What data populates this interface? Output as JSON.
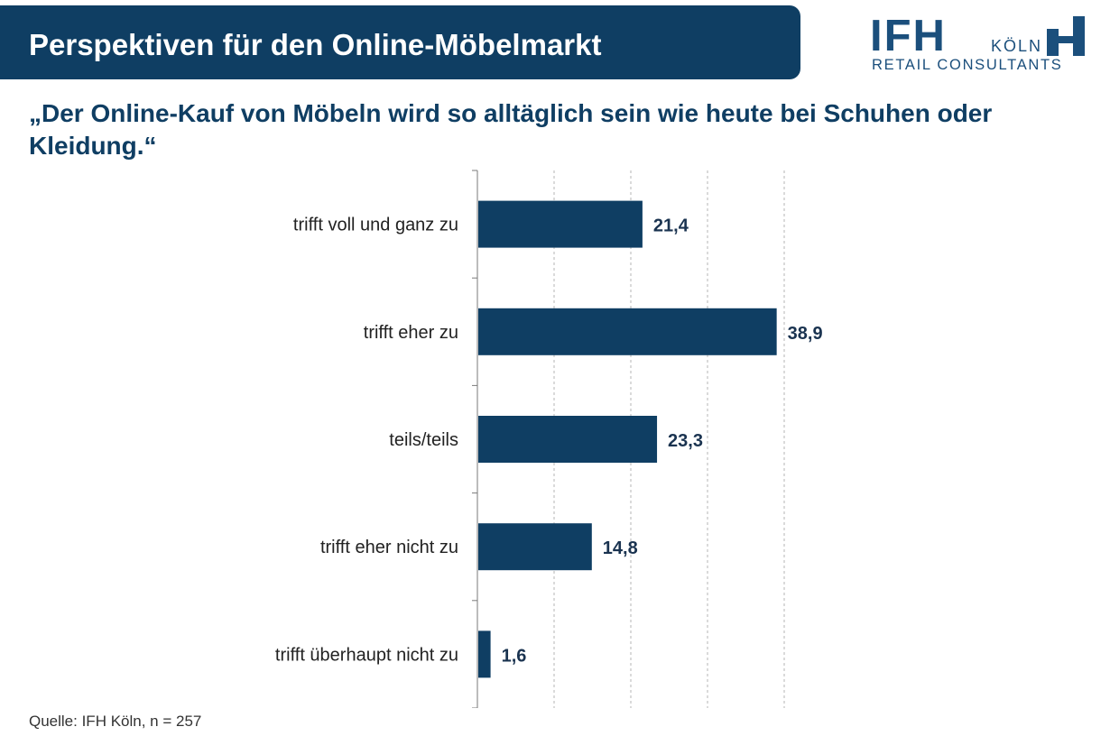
{
  "header": {
    "title": "Perspektiven für den Online-Möbelmarkt"
  },
  "logo": {
    "letters": "IFH",
    "city": "KÖLN",
    "tagline": "RETAIL CONSULTANTS"
  },
  "subtitle": "„Der Online-Kauf von Möbeln wird so alltäglich sein wie heute bei Schuhen oder Kleidung.“",
  "chart_data": {
    "type": "bar",
    "orientation": "horizontal",
    "categories": [
      "trifft voll und ganz zu",
      "trifft eher zu",
      "teils/teils",
      "trifft eher nicht zu",
      "trifft überhaupt nicht zu"
    ],
    "values": [
      21.4,
      38.9,
      23.3,
      14.8,
      1.6
    ],
    "value_labels": [
      "21,4",
      "38,9",
      "23,3",
      "14,8",
      "1,6"
    ],
    "xlim": [
      0,
      40
    ],
    "grid": true,
    "legend": "none",
    "bar_color": "#0f3e63"
  },
  "source": "Quelle: IFH Köln, n = 257"
}
